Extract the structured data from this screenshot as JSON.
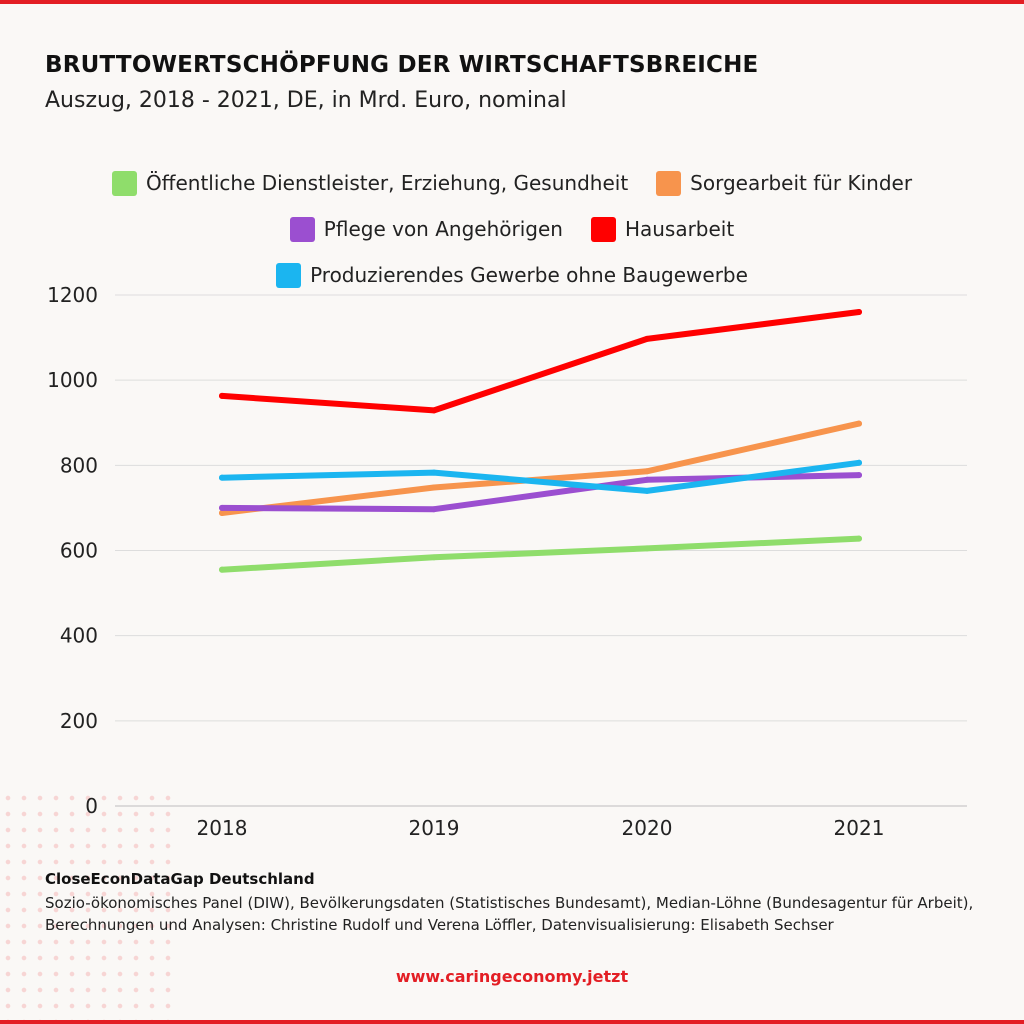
{
  "header": {
    "title": "BRUTTOWERTSCHÖPFUNG DER WIRTSCHAFTSBREICHE",
    "subtitle": "Auszug, 2018 - 2021, DE, in Mrd. Euro, nominal"
  },
  "colors": {
    "accent": "#e31e24",
    "background": "#faf8f6",
    "grid": "#dddddd"
  },
  "chart_data": {
    "type": "line",
    "x": [
      "2018",
      "2019",
      "2020",
      "2021"
    ],
    "ylim": [
      0,
      1200
    ],
    "yticks": [
      0,
      200,
      400,
      600,
      800,
      1000,
      1200
    ],
    "grid": true,
    "legend_position": "top-center",
    "xlabel": "",
    "ylabel": "",
    "series": [
      {
        "name": "Öffentliche Dienstleister, Erziehung, Gesundheit",
        "color": "#8fdd6b",
        "values": [
          555,
          584,
          605,
          628
        ]
      },
      {
        "name": "Sorgearbeit für Kinder",
        "color": "#f7944d",
        "values": [
          688,
          748,
          786,
          898
        ]
      },
      {
        "name": "Pflege von Angehörigen",
        "color": "#9b4fd0",
        "values": [
          700,
          697,
          766,
          777
        ]
      },
      {
        "name": "Hausarbeit",
        "color": "#ff0000",
        "values": [
          963,
          929,
          1097,
          1160
        ]
      },
      {
        "name": "Produzierendes Gewerbe ohne Baugewerbe",
        "color": "#1bb5f0",
        "values": [
          771,
          783,
          740,
          806
        ]
      }
    ]
  },
  "footer": {
    "heading": "CloseEconDataGap Deutschland",
    "sources": "Sozio-ökonomisches Panel (DIW), Bevölkerungsdaten (Statistisches Bundesamt), Median-Löhne (Bundesagentur für Arbeit), Berechnungen und Analysen: Christine Rudolf und Verena Löffler, Datenvisualisierung: Elisabeth Sechser",
    "url": "www.caringeconomy.jetzt"
  }
}
